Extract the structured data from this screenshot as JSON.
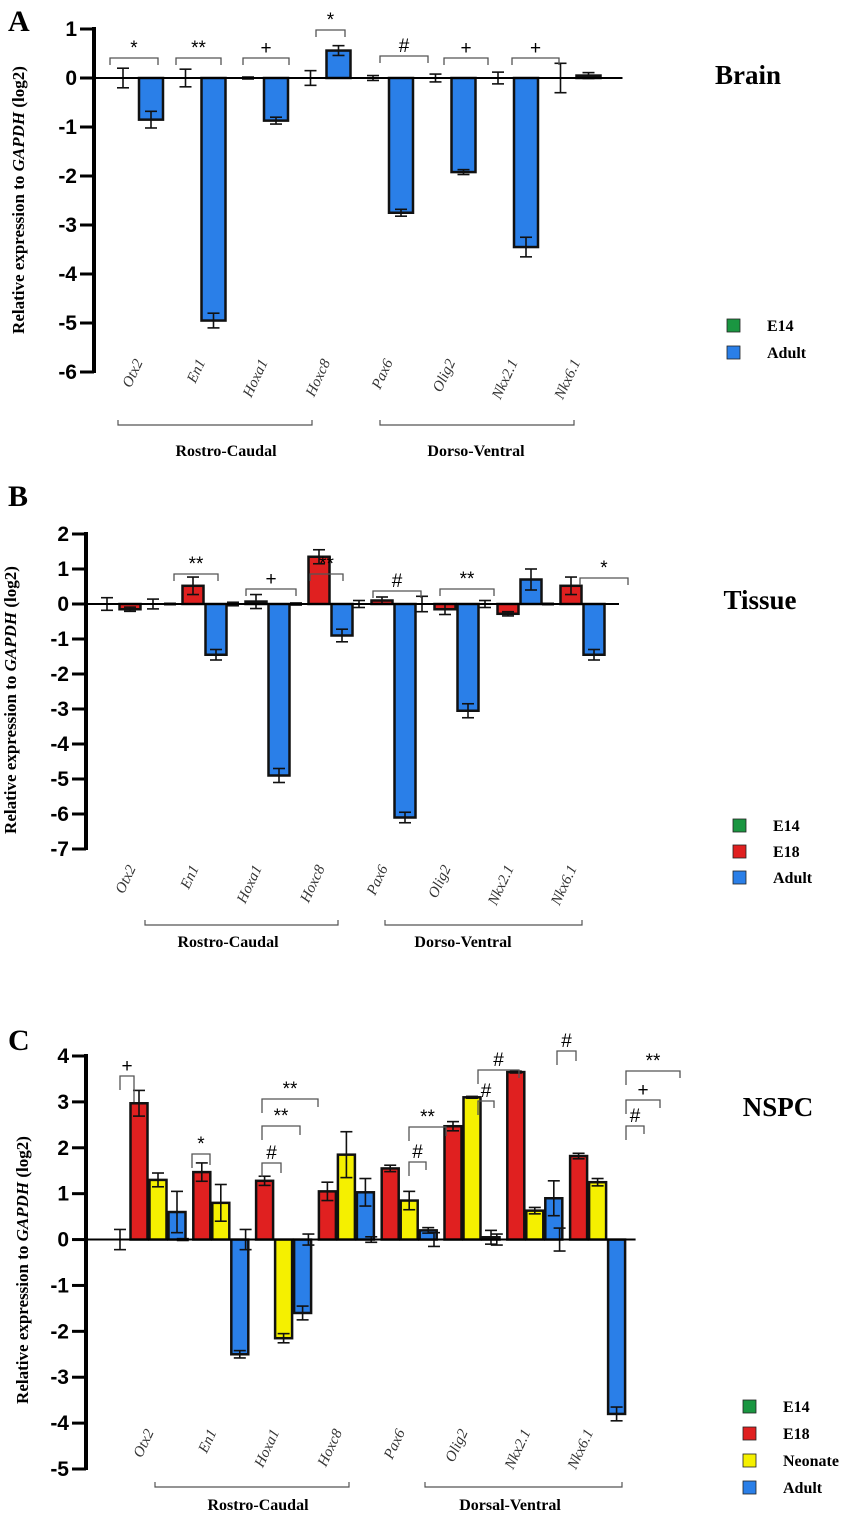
{
  "colors": {
    "E14": "#1a9641",
    "E18": "#e02020",
    "Neonate": "#f5f000",
    "Adult": "#2a7fe8"
  },
  "chart_data": [
    {
      "panel": "A",
      "title": "Brain",
      "type": "bar",
      "ylabel_parts": [
        "Relative expression to ",
        "GAPDH",
        " (log2)"
      ],
      "ylim": [
        -6,
        1
      ],
      "yticks": [
        1,
        0,
        -1,
        -2,
        -3,
        -4,
        -5,
        -6
      ],
      "categories": [
        "Otx2",
        "En1",
        "Hoxa1",
        "Hoxc8",
        "Pax6",
        "Olig2",
        "Nkx2.1",
        "Nkx6.1"
      ],
      "series": [
        {
          "name": "E14",
          "values": [
            0,
            0,
            0,
            0,
            0,
            0,
            0,
            0
          ],
          "errors": [
            0.2,
            0.18,
            0.02,
            0.15,
            0.05,
            0.08,
            0.12,
            0.3
          ]
        },
        {
          "name": "Adult",
          "values": [
            -0.85,
            -4.95,
            -0.87,
            0.56,
            -2.75,
            -1.92,
            -3.45,
            0.05
          ],
          "errors": [
            0.17,
            0.15,
            0.07,
            0.1,
            0.07,
            0.05,
            0.2,
            0.06
          ]
        }
      ],
      "significance": [
        {
          "category": "Otx2",
          "label": "*"
        },
        {
          "category": "En1",
          "label": "**"
        },
        {
          "category": "Hoxa1",
          "label": "+"
        },
        {
          "category": "Hoxc8",
          "label": "*"
        },
        {
          "category": "Pax6",
          "label": "#"
        },
        {
          "category": "Olig2",
          "label": "+"
        },
        {
          "category": "Nkx2.1",
          "label": "+"
        }
      ],
      "groups": [
        "Rostro-Caudal",
        "Dorso-Ventral"
      ],
      "legend": [
        "E14",
        "Adult"
      ]
    },
    {
      "panel": "B",
      "title": "Tissue",
      "type": "bar",
      "ylabel_parts": [
        "Relative expression to ",
        "GAPDH",
        " (log2)"
      ],
      "ylim": [
        -7,
        2
      ],
      "yticks": [
        2,
        1,
        0,
        -1,
        -2,
        -3,
        -4,
        -5,
        -6,
        -7
      ],
      "categories": [
        "Otx2",
        "En1",
        "Hoxa1",
        "Hoxc8",
        "Pax6",
        "Olig2",
        "Nkx2.1",
        "Nkx6.1"
      ],
      "series": [
        {
          "name": "E14",
          "values": [
            0,
            0,
            0,
            0,
            0,
            0,
            0,
            0
          ],
          "errors": [
            0.18,
            0.02,
            0.05,
            0.03,
            0.1,
            0.22,
            0.1,
            0.02
          ]
        },
        {
          "name": "E18",
          "values": [
            -0.15,
            0.52,
            0.07,
            1.35,
            0.1,
            -0.15,
            -0.28,
            0.52
          ],
          "errors": [
            0.06,
            0.25,
            0.2,
            0.2,
            0.1,
            0.15,
            0.06,
            0.25
          ]
        },
        {
          "name": "Adult",
          "values": [
            0,
            -1.45,
            -4.9,
            -0.9,
            -6.1,
            -3.05,
            0.7,
            -1.45
          ],
          "errors": [
            0.14,
            0.15,
            0.2,
            0.18,
            0.15,
            0.2,
            0.3,
            0.15
          ]
        }
      ],
      "significance": [
        {
          "category": "En1",
          "label": "**"
        },
        {
          "category": "Hoxa1",
          "label": "+"
        },
        {
          "category": "Hoxc8",
          "label": "**"
        },
        {
          "category": "Pax6",
          "label": "#"
        },
        {
          "category": "Olig2",
          "label": "**"
        },
        {
          "category": "Nkx6.1",
          "label": "*"
        }
      ],
      "groups": [
        "Rostro-Caudal",
        "Dorso-Ventral"
      ],
      "legend": [
        "E14",
        "E18",
        "Adult"
      ]
    },
    {
      "panel": "C",
      "title": "NSPC",
      "type": "bar",
      "ylabel_parts": [
        "Relative expression to ",
        "GAPDH",
        " (log2)"
      ],
      "ylim": [
        -5,
        4
      ],
      "yticks": [
        4,
        3,
        2,
        1,
        0,
        -1,
        -2,
        -3,
        -4,
        -5
      ],
      "categories": [
        "Otx2",
        "En1",
        "Hoxa1",
        "Hoxc8",
        "Pax6",
        "Olig2",
        "Nkx2.1",
        "Nkx6.1"
      ],
      "series": [
        {
          "name": "E14",
          "values": [
            0,
            0,
            0,
            0,
            0,
            0,
            0,
            0
          ],
          "errors": [
            0.22,
            0.02,
            0.22,
            0.12,
            0.06,
            0.15,
            0.12,
            0.25
          ]
        },
        {
          "name": "E18",
          "values": [
            2.97,
            1.47,
            1.28,
            1.05,
            1.55,
            2.47,
            3.65,
            1.82
          ],
          "errors": [
            0.28,
            0.2,
            0.1,
            0.2,
            0.07,
            0.1,
            0.02,
            0.06
          ]
        },
        {
          "name": "Neonate",
          "values": [
            1.3,
            0.8,
            -2.15,
            1.85,
            0.85,
            3.1,
            0.63,
            1.25
          ],
          "errors": [
            0.15,
            0.4,
            0.1,
            0.5,
            0.2,
            0.02,
            0.07,
            0.08
          ]
        },
        {
          "name": "Adult",
          "values": [
            0.6,
            -2.5,
            -1.6,
            1.03,
            0.2,
            0.05,
            0.9,
            -3.8
          ],
          "errors": [
            0.45,
            0.08,
            0.15,
            0.3,
            0.06,
            0.15,
            0.38,
            0.15
          ]
        }
      ],
      "significance": [
        {
          "category": "Otx2",
          "label": "+"
        },
        {
          "category": "En1",
          "label": "*"
        },
        {
          "category": "Hoxa1",
          "label": "#"
        },
        {
          "category": "Hoxa1",
          "label": "**"
        },
        {
          "category": "Hoxa1",
          "label": "**"
        },
        {
          "category": "Pax6",
          "label": "#"
        },
        {
          "category": "Pax6",
          "label": "**"
        },
        {
          "category": "Olig2",
          "label": "#"
        },
        {
          "category": "Olig2",
          "label": "#"
        },
        {
          "category": "Nkx2.1",
          "label": "#"
        },
        {
          "category": "Nkx6.1",
          "label": "#"
        },
        {
          "category": "Nkx6.1",
          "label": "+"
        },
        {
          "category": "Nkx6.1",
          "label": "**"
        }
      ],
      "groups": [
        "Rostro-Caudal",
        "Dorsal-Ventral"
      ],
      "legend": [
        "E14",
        "E18",
        "Neonate",
        "Adult"
      ]
    }
  ]
}
